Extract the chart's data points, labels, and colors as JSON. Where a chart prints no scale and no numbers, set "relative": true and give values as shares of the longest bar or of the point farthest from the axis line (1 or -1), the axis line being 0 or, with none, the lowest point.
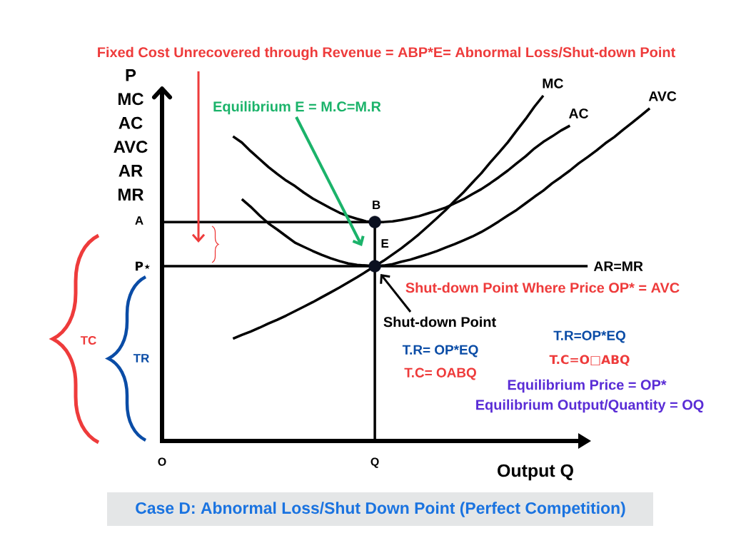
{
  "chart_data": {
    "type": "line",
    "relative": true,
    "title": "Case D: Abnormal Loss/Shut Down Point (Perfect Competition)",
    "xlabel": "Output Q",
    "ylabel": "P MC AC AVC AR MR",
    "categories": [
      "O",
      null,
      null,
      null,
      null,
      null,
      null,
      null,
      null,
      null,
      null,
      null,
      null,
      null,
      null,
      null,
      null,
      null,
      null,
      null,
      null,
      null,
      null,
      null,
      "Q",
      null,
      null,
      null,
      null,
      null,
      null,
      null,
      null,
      null,
      null,
      null,
      null,
      null,
      null,
      null,
      null,
      null,
      null,
      null,
      null,
      null,
      null,
      null,
      null,
      null,
      null,
      null,
      null,
      null,
      null,
      null
    ],
    "series": [
      {
        "name": "MC",
        "color": "#000000",
        "values": [
          null,
          null,
          null,
          null,
          null,
          null,
          null,
          null,
          0.296,
          0.307,
          0.317,
          0.328,
          0.34,
          0.351,
          0.363,
          0.376,
          0.389,
          0.402,
          0.416,
          0.43,
          0.444,
          0.459,
          0.474,
          0.49,
          0.506,
          0.522,
          0.54,
          0.558,
          0.578,
          0.599,
          0.622,
          0.645,
          0.669,
          0.695,
          0.72,
          0.748,
          0.775,
          0.806,
          0.835,
          0.865,
          0.899,
          0.932,
          0.968,
          1.0,
          null,
          null,
          null,
          null,
          null,
          null,
          null,
          null,
          null,
          null,
          null,
          null
        ]
      },
      {
        "name": "AC",
        "color": "#000000",
        "values": [
          null,
          null,
          null,
          null,
          null,
          null,
          null,
          null,
          0.882,
          0.864,
          0.839,
          0.816,
          0.793,
          0.773,
          0.754,
          0.738,
          0.719,
          0.702,
          0.688,
          0.674,
          0.661,
          0.651,
          0.643,
          0.636,
          0.634,
          0.634,
          0.636,
          0.64,
          0.645,
          0.651,
          0.659,
          0.667,
          0.676,
          0.688,
          0.7,
          0.715,
          0.729,
          0.746,
          0.764,
          0.783,
          0.804,
          0.824,
          0.847,
          0.866,
          0.882,
          0.899,
          0.913,
          null,
          null,
          null,
          null,
          null,
          null,
          null,
          null,
          null
        ]
      },
      {
        "name": "AVC",
        "color": "#000000",
        "values": [
          null,
          null,
          null,
          null,
          null,
          null,
          null,
          null,
          null,
          0.7,
          0.678,
          0.653,
          0.63,
          0.612,
          0.593,
          0.574,
          0.562,
          0.55,
          0.539,
          0.529,
          0.521,
          0.514,
          0.51,
          0.508,
          0.506,
          0.508,
          0.512,
          0.519,
          0.525,
          0.533,
          0.541,
          0.55,
          0.56,
          0.57,
          0.581,
          0.592,
          0.605,
          0.62,
          0.636,
          0.653,
          0.669,
          0.688,
          0.707,
          0.725,
          0.746,
          0.764,
          0.783,
          0.804,
          0.822,
          0.841,
          0.862,
          0.88,
          0.901,
          0.921,
          0.942,
          0.963
        ]
      },
      {
        "name": "AR=MR",
        "color": "#000000",
        "values": [
          0.506,
          0.506,
          0.506,
          0.506,
          0.506,
          0.506,
          0.506,
          0.506,
          0.506,
          0.506,
          0.506,
          0.506,
          0.506,
          0.506,
          0.506,
          0.506,
          0.506,
          0.506,
          0.506,
          0.506,
          0.506,
          0.506,
          0.506,
          0.506,
          0.506,
          0.506,
          0.506,
          0.506,
          0.506,
          0.506,
          0.506,
          0.506,
          0.506,
          0.506,
          0.506,
          0.506,
          0.506,
          0.506,
          0.506,
          0.506,
          0.506,
          0.506,
          0.506,
          0.506,
          0.506,
          0.506,
          0.506,
          0.506,
          0.506,
          null,
          null,
          null,
          null,
          null,
          null,
          null
        ]
      },
      {
        "color": "#000000",
        "x": [
          "O",
          "Q",
          "Q"
        ],
        "values": [
          0.634,
          0.634,
          0
        ]
      },
      {
        "type": "scatter",
        "marker": "circle",
        "color": "#0b1020",
        "x": [
          "Q",
          "Q"
        ],
        "values": [
          0.634,
          0.506
        ]
      }
    ],
    "annotations": [
      "Fixed Cost Unrecovered through Revenue = ABP*E= Abnormal Loss/Shut-down Point",
      "Equilibrium E = M.C=M.R",
      "A",
      "P⋆",
      {
        "text": "B",
        "x": "Q",
        "y": 0.634
      },
      {
        "text": "E",
        "x": "Q",
        "y": 0.506
      },
      "TC",
      "TR",
      "Shut-down Point Where Price OP* = AVC",
      "Shut-down Point",
      "T.R= OP*EQ",
      "T.C= OABQ",
      "T.R=OP*EQ",
      "T.C=O□ABQ",
      "Equilibrium Price = OP*",
      "Equilibrium Output/Quantity = OQ"
    ]
  }
}
